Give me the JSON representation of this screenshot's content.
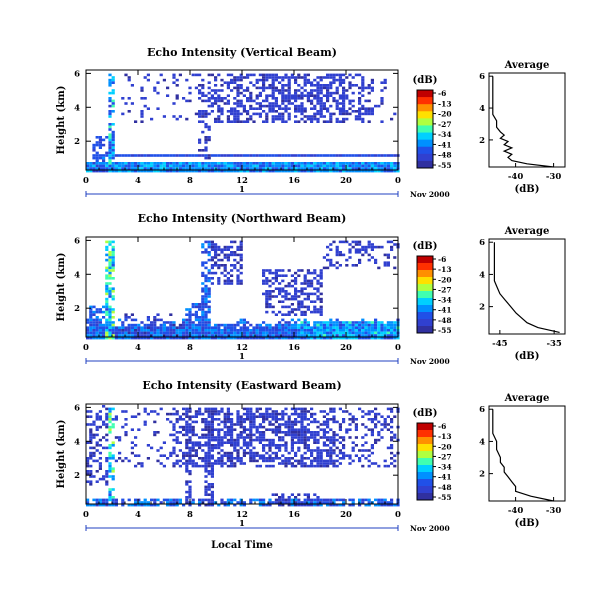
{
  "colorbar": {
    "title": "(dB)",
    "ticks": [
      "-6",
      "-13",
      "-20",
      "-27",
      "-34",
      "-41",
      "-48",
      "-55"
    ],
    "colors": [
      "#c00000",
      "#ff3000",
      "#ff9000",
      "#ffe000",
      "#b0ff40",
      "#40ffb0",
      "#00d0ff",
      "#0090ff",
      "#2050e8",
      "#3040d0",
      "#3030a0"
    ]
  },
  "date_label": "Nov 2000",
  "day_marker": "1",
  "xlabel": "Local Time",
  "chart_data": [
    {
      "type": "heatmap",
      "title": "Echo Intensity (Vertical Beam)",
      "ylabel": "Height (km)",
      "x_ticks": [
        "0",
        "4",
        "8",
        "12",
        "16",
        "20",
        "0"
      ],
      "y_ticks": [
        "2",
        "4",
        "6"
      ],
      "xlim": [
        0,
        24
      ],
      "ylim": [
        0.3,
        6.2
      ],
      "value_range_db": [
        -55,
        -6
      ],
      "average": {
        "title": "Average",
        "xlabel": "(dB)",
        "x_ticks": [
          "-40",
          "-30"
        ],
        "xlim": [
          -47,
          -27
        ],
        "heights": [
          0.3,
          0.5,
          0.7,
          0.9,
          1.1,
          1.3,
          1.5,
          1.7,
          1.9,
          2.1,
          2.3,
          2.5,
          2.8,
          3.2,
          3.6,
          4.0,
          4.5,
          5.0,
          5.5,
          6.0
        ],
        "values": [
          -30,
          -37,
          -41,
          -42,
          -41,
          -43,
          -41,
          -43,
          -42,
          -44,
          -43,
          -44,
          -45,
          -45,
          -46,
          -46,
          -46,
          -46,
          -46,
          -46
        ]
      }
    },
    {
      "type": "heatmap",
      "title": "Echo Intensity (Northward Beam)",
      "ylabel": "Height (km)",
      "x_ticks": [
        "0",
        "4",
        "8",
        "12",
        "16",
        "20",
        "0"
      ],
      "y_ticks": [
        "2",
        "4",
        "6"
      ],
      "xlim": [
        0,
        24
      ],
      "ylim": [
        0.3,
        6.2
      ],
      "value_range_db": [
        -55,
        -6
      ],
      "average": {
        "title": "Average",
        "xlabel": "(dB)",
        "x_ticks": [
          "-45",
          "-35"
        ],
        "xlim": [
          -47,
          -33
        ],
        "heights": [
          0.4,
          0.7,
          1.0,
          1.3,
          1.6,
          2.0,
          2.4,
          2.8,
          3.2,
          3.6,
          4.0,
          4.5,
          5.0,
          5.5,
          6.0
        ],
        "values": [
          -34,
          -38,
          -40,
          -41,
          -42,
          -43,
          -44,
          -45,
          -45.5,
          -46,
          -46,
          -46,
          -46,
          -46,
          -46
        ]
      }
    },
    {
      "type": "heatmap",
      "title": "Echo Intensity (Eastward Beam)",
      "ylabel": "Height (km)",
      "x_ticks": [
        "0",
        "4",
        "8",
        "12",
        "16",
        "20",
        "0"
      ],
      "y_ticks": [
        "2",
        "4",
        "6"
      ],
      "xlim": [
        0,
        24
      ],
      "ylim": [
        0.3,
        6.2
      ],
      "value_range_db": [
        -55,
        -6
      ],
      "average": {
        "title": "Average",
        "xlabel": "(dB)",
        "x_ticks": [
          "-40",
          "-30"
        ],
        "xlim": [
          -47,
          -27
        ],
        "heights": [
          0.3,
          0.6,
          0.9,
          1.2,
          1.5,
          1.8,
          2.1,
          2.4,
          2.7,
          3.0,
          3.5,
          4.0,
          4.5,
          5.0,
          5.5,
          6.0
        ],
        "values": [
          -30,
          -36,
          -40,
          -40,
          -41,
          -42,
          -43,
          -43,
          -44,
          -44,
          -45,
          -45,
          -46,
          -46,
          -46,
          -46
        ]
      }
    }
  ]
}
